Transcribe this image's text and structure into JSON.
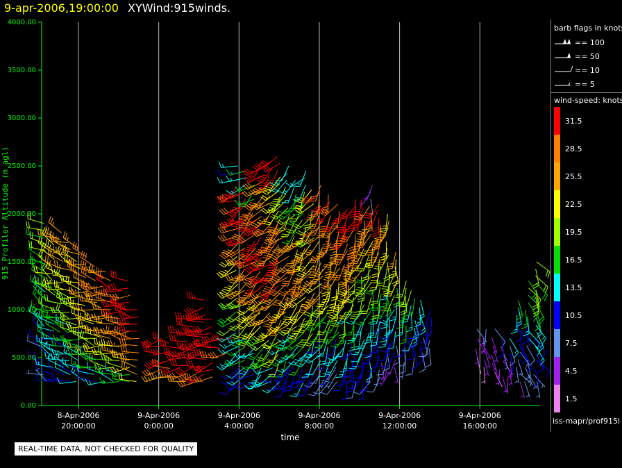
{
  "header": {
    "date": "9-apr-2006,19:00:00",
    "title": "XYWind:915winds."
  },
  "qc_note": "REAL-TIME DATA, NOT CHECKED FOR QUALITY",
  "legend": {
    "barb_title": "barb flags in knots",
    "barb_entries": [
      {
        "label": "== 100",
        "kind": "flag2"
      },
      {
        "label": "== 50",
        "kind": "flag"
      },
      {
        "label": "== 10",
        "kind": "full"
      },
      {
        "label": "== 5",
        "kind": "half"
      }
    ],
    "speed_title": "wind-speed: knots",
    "colorbar": [
      {
        "label": "31.5",
        "color": "#ff0000"
      },
      {
        "label": "28.5",
        "color": "#ff8000"
      },
      {
        "label": "25.5",
        "color": "#ffa500"
      },
      {
        "label": "22.5",
        "color": "#ffff00"
      },
      {
        "label": "19.5",
        "color": "#a0ff00"
      },
      {
        "label": "16.5",
        "color": "#00e000"
      },
      {
        "label": "13.5",
        "color": "#00ffff"
      },
      {
        "label": "10.5",
        "color": "#0000ff"
      },
      {
        "label": "7.5",
        "color": "#6495ed"
      },
      {
        "label": "4.5",
        "color": "#a020f0"
      },
      {
        "label": "1.5",
        "color": "#ee82ee"
      }
    ],
    "source": "iss-mapr/prof915l"
  },
  "chart_data": {
    "type": "scatter",
    "marker": "wind-barb",
    "xlabel": "time",
    "ylabel": "915 Profiler Altitude (m agl)",
    "xlim": [
      "2006-04-08T18:10",
      "2006-04-09T19:00"
    ],
    "ylim": [
      0,
      4000
    ],
    "yticks": [
      "0.00",
      "500.00",
      "1000.00",
      "1500.00",
      "2000.00",
      "2500.00",
      "3000.00",
      "3500.00",
      "4000.00"
    ],
    "xticks": [
      {
        "line1": "8-Apr-2006",
        "line2": "20:00:00"
      },
      {
        "line1": "9-Apr-2006",
        "line2": "0:00:00"
      },
      {
        "line1": "9-Apr-2006",
        "line2": "4:00:00"
      },
      {
        "line1": "9-Apr-2006",
        "line2": "8:00:00"
      },
      {
        "line1": "9-Apr-2006",
        "line2": "12:00:00"
      },
      {
        "line1": "9-Apr-2006",
        "line2": "16:00:00"
      }
    ],
    "grid": "vertical",
    "columns": [
      {
        "t": "2006-04-08T18:20",
        "bot": 250,
        "top": 1900,
        "spd": [
          8,
          10,
          12,
          14,
          16,
          18,
          20
        ],
        "dir": 300
      },
      {
        "t": "2006-04-08T18:45",
        "bot": 250,
        "top": 1750,
        "spd": [
          10,
          12,
          15,
          18,
          20,
          22,
          24
        ],
        "dir": 295
      },
      {
        "t": "2006-04-08T19:10",
        "bot": 250,
        "top": 1800,
        "spd": [
          10,
          12,
          16,
          18,
          22,
          24,
          26
        ],
        "dir": 290
      },
      {
        "t": "2006-04-08T19:35",
        "bot": 250,
        "top": 1700,
        "spd": [
          11,
          14,
          16,
          20,
          22,
          24,
          25
        ],
        "dir": 290
      },
      {
        "t": "2006-04-08T20:00",
        "bot": 250,
        "top": 1650,
        "spd": [
          12,
          15,
          18,
          20,
          22,
          24,
          26
        ],
        "dir": 285
      },
      {
        "t": "2006-04-08T20:25",
        "bot": 250,
        "top": 1550,
        "spd": [
          12,
          16,
          18,
          22,
          24,
          26,
          27
        ],
        "dir": 285
      },
      {
        "t": "2006-04-08T20:50",
        "bot": 250,
        "top": 1450,
        "spd": [
          13,
          16,
          20,
          24,
          26,
          28,
          28
        ],
        "dir": 280
      },
      {
        "t": "2006-04-08T21:15",
        "bot": 250,
        "top": 1400,
        "spd": [
          14,
          18,
          22,
          25,
          27,
          28,
          28
        ],
        "dir": 280
      },
      {
        "t": "2006-04-08T21:40",
        "bot": 250,
        "top": 1300,
        "spd": [
          14,
          18,
          22,
          25,
          27,
          28,
          29
        ],
        "dir": 280
      },
      {
        "t": "2006-04-08T22:05",
        "bot": 250,
        "top": 1200,
        "spd": [
          16,
          20,
          24,
          26,
          28,
          29,
          30
        ],
        "dir": 275
      },
      {
        "t": "2006-04-08T22:30",
        "bot": 250,
        "top": 1300,
        "spd": [
          18,
          22,
          25,
          27,
          29,
          30,
          32
        ],
        "dir": 275
      },
      {
        "t": "2006-04-08T22:55",
        "bot": 250,
        "top": 1000,
        "spd": [
          22,
          25,
          28,
          30,
          31,
          32,
          32
        ],
        "dir": 270
      },
      {
        "t": "2006-04-09T00:10",
        "bot": 300,
        "top": 700,
        "spd": [
          25,
          28,
          30,
          31,
          32,
          32,
          32
        ],
        "dir": 265
      },
      {
        "t": "2006-04-09T00:35",
        "bot": 300,
        "top": 650,
        "spd": [
          26,
          28,
          30,
          32,
          32,
          32,
          32
        ],
        "dir": 265
      },
      {
        "t": "2006-04-09T01:00",
        "bot": 300,
        "top": 600,
        "spd": [
          26,
          29,
          31,
          32,
          32,
          32,
          32
        ],
        "dir": 265
      },
      {
        "t": "2006-04-09T01:25",
        "bot": 250,
        "top": 750,
        "spd": [
          27,
          29,
          31,
          32,
          32,
          32,
          32
        ],
        "dir": 260
      },
      {
        "t": "2006-04-09T01:50",
        "bot": 250,
        "top": 900,
        "spd": [
          27,
          29,
          31,
          32,
          32,
          32,
          32
        ],
        "dir": 260
      },
      {
        "t": "2006-04-09T02:15",
        "bot": 250,
        "top": 1100,
        "spd": [
          28,
          30,
          31,
          32,
          32,
          32,
          32
        ],
        "dir": 260
      },
      {
        "t": "2006-04-09T02:40",
        "bot": 300,
        "top": 900,
        "spd": [
          28,
          30,
          31,
          32,
          32,
          32,
          32
        ],
        "dir": 260
      },
      {
        "t": "2006-04-09T03:05",
        "bot": 500,
        "top": 700,
        "spd": [
          29,
          30,
          31,
          32,
          32,
          32,
          32
        ],
        "dir": 260
      },
      {
        "t": "2006-04-09T03:30",
        "bot": 550,
        "top": 700,
        "spd": [
          30,
          31,
          32,
          32,
          32,
          32,
          32
        ],
        "dir": 255
      },
      {
        "t": "2006-04-09T03:55",
        "bot": 250,
        "top": 2500,
        "spd": [
          10,
          14,
          18,
          22,
          28,
          31,
          12
        ],
        "dir": 240
      },
      {
        "t": "2006-04-09T04:20",
        "bot": 250,
        "top": 2450,
        "spd": [
          12,
          16,
          20,
          25,
          30,
          32,
          14
        ],
        "dir": 235
      },
      {
        "t": "2006-04-09T04:45",
        "bot": 250,
        "top": 2300,
        "spd": [
          10,
          15,
          22,
          28,
          31,
          30,
          18
        ],
        "dir": 230
      },
      {
        "t": "2006-04-09T05:10",
        "bot": 250,
        "top": 2550,
        "spd": [
          12,
          18,
          24,
          30,
          32,
          28,
          32
        ],
        "dir": 225
      },
      {
        "t": "2006-04-09T05:35",
        "bot": 250,
        "top": 2550,
        "spd": [
          14,
          18,
          26,
          31,
          30,
          25,
          32
        ],
        "dir": 225
      },
      {
        "t": "2006-04-09T06:00",
        "bot": 250,
        "top": 2600,
        "spd": [
          12,
          20,
          26,
          30,
          28,
          22,
          32
        ],
        "dir": 220
      },
      {
        "t": "2006-04-09T06:25",
        "bot": 250,
        "top": 2500,
        "spd": [
          10,
          16,
          24,
          29,
          27,
          20,
          12
        ],
        "dir": 220
      },
      {
        "t": "2006-04-09T06:50",
        "bot": 250,
        "top": 2350,
        "spd": [
          10,
          15,
          22,
          28,
          26,
          18,
          14
        ],
        "dir": 215
      },
      {
        "t": "2006-04-09T07:15",
        "bot": 250,
        "top": 2450,
        "spd": [
          12,
          16,
          22,
          27,
          25,
          18,
          13
        ],
        "dir": 215
      },
      {
        "t": "2006-04-09T07:40",
        "bot": 250,
        "top": 2250,
        "spd": [
          10,
          14,
          20,
          26,
          24,
          20,
          22
        ],
        "dir": 210
      },
      {
        "t": "2006-04-09T08:05",
        "bot": 250,
        "top": 2300,
        "spd": [
          9,
          13,
          18,
          24,
          26,
          28,
          30
        ],
        "dir": 210
      },
      {
        "t": "2006-04-09T08:30",
        "bot": 250,
        "top": 2200,
        "spd": [
          8,
          12,
          18,
          22,
          26,
          28,
          30
        ],
        "dir": 205
      },
      {
        "t": "2006-04-09T08:55",
        "bot": 250,
        "top": 2100,
        "spd": [
          8,
          12,
          16,
          22,
          25,
          27,
          29
        ],
        "dir": 205
      },
      {
        "t": "2006-04-09T09:20",
        "bot": 250,
        "top": 2050,
        "spd": [
          9,
          13,
          18,
          24,
          27,
          29,
          31
        ],
        "dir": 200
      },
      {
        "t": "2006-04-09T09:45",
        "bot": 250,
        "top": 2150,
        "spd": [
          10,
          12,
          16,
          22,
          26,
          29,
          31
        ],
        "dir": 200
      },
      {
        "t": "2006-04-09T10:10",
        "bot": 250,
        "top": 2150,
        "spd": [
          9,
          12,
          15,
          20,
          24,
          28,
          31
        ],
        "dir": 200
      },
      {
        "t": "2006-04-09T10:35",
        "bot": 250,
        "top": 2300,
        "spd": [
          8,
          11,
          14,
          18,
          22,
          26,
          6
        ],
        "dir": 195
      },
      {
        "t": "2006-04-09T11:00",
        "bot": 300,
        "top": 2100,
        "spd": [
          7,
          10,
          13,
          18,
          22,
          28,
          32
        ],
        "dir": 195
      },
      {
        "t": "2006-04-09T11:25",
        "bot": 350,
        "top": 2000,
        "spd": [
          6,
          9,
          12,
          16,
          20,
          24,
          25
        ],
        "dir": 190
      },
      {
        "t": "2006-04-09T11:50",
        "bot": 400,
        "top": 1600,
        "spd": [
          6,
          8,
          11,
          14,
          18,
          22,
          24
        ],
        "dir": 190
      },
      {
        "t": "2006-04-09T12:15",
        "bot": 450,
        "top": 1300,
        "spd": [
          7,
          9,
          12,
          14,
          16,
          18,
          20
        ],
        "dir": 185
      },
      {
        "t": "2006-04-09T12:40",
        "bot": 500,
        "top": 1200,
        "spd": [
          8,
          10,
          12,
          13,
          14,
          16,
          18
        ],
        "dir": 185
      },
      {
        "t": "2006-04-09T13:05",
        "bot": 550,
        "top": 1100,
        "spd": [
          8,
          9,
          10,
          11,
          12,
          13,
          14
        ],
        "dir": 180
      },
      {
        "t": "2006-04-09T13:30",
        "bot": 600,
        "top": 1000,
        "spd": [
          8,
          9,
          10,
          10,
          11,
          12,
          12
        ],
        "dir": 180
      },
      {
        "t": "2006-04-09T15:50",
        "bot": 500,
        "top": 800,
        "spd": [
          3,
          4,
          4,
          5,
          5,
          6,
          6
        ],
        "dir": 165
      },
      {
        "t": "2006-04-09T16:15",
        "bot": 400,
        "top": 800,
        "spd": [
          3,
          3,
          4,
          4,
          5,
          6,
          6
        ],
        "dir": 165
      },
      {
        "t": "2006-04-09T16:40",
        "bot": 350,
        "top": 800,
        "spd": [
          3,
          4,
          4,
          5,
          5,
          6,
          7
        ],
        "dir": 160
      },
      {
        "t": "2006-04-09T17:05",
        "bot": 300,
        "top": 700,
        "spd": [
          4,
          4,
          5,
          5,
          6,
          7,
          8
        ],
        "dir": 160
      },
      {
        "t": "2006-04-09T17:30",
        "bot": 300,
        "top": 700,
        "spd": [
          4,
          5,
          5,
          6,
          8,
          10,
          12
        ],
        "dir": 160
      },
      {
        "t": "2006-04-09T17:55",
        "bot": 250,
        "top": 1100,
        "spd": [
          5,
          6,
          8,
          10,
          12,
          14,
          16
        ],
        "dir": 155
      },
      {
        "t": "2006-04-09T18:20",
        "bot": 250,
        "top": 1300,
        "spd": [
          6,
          8,
          10,
          12,
          14,
          16,
          18
        ],
        "dir": 155
      },
      {
        "t": "2006-04-09T18:45",
        "bot": 250,
        "top": 1500,
        "spd": [
          8,
          10,
          12,
          14,
          17,
          19,
          21
        ],
        "dir": 150
      }
    ]
  }
}
